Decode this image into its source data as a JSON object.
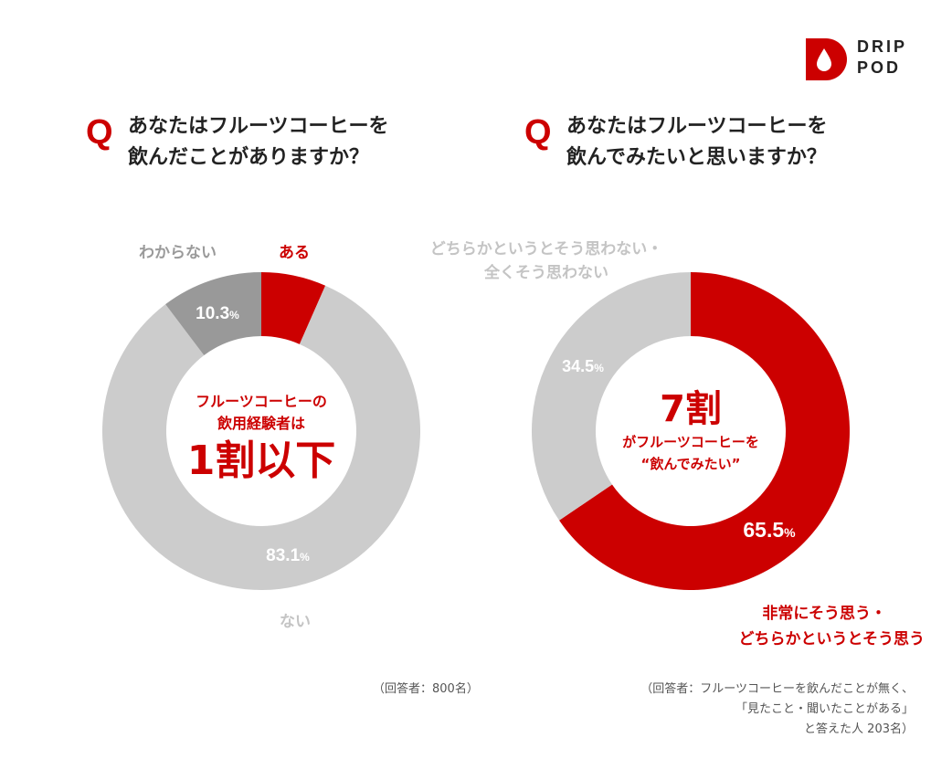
{
  "brand": {
    "line1": "DRIP",
    "line2": "POD"
  },
  "q_mark": "Q",
  "chart_data": [
    {
      "type": "pie",
      "title": "あなたはフルーツコーヒーを\n飲んだことがありますか？",
      "categories": [
        "ある",
        "ない",
        "わからない"
      ],
      "values": [
        6.6,
        83.1,
        10.3
      ],
      "value_labels": [
        "6.6",
        "83.1",
        "10.3"
      ],
      "unit": "%",
      "colors": [
        "#cc0000",
        "#cccccc",
        "#999999"
      ],
      "center": {
        "line1": "フルーツコーヒーの",
        "line2": "飲用経験者は",
        "line3": "1割以下"
      },
      "note": "（回答者：800名）"
    },
    {
      "type": "pie",
      "title": "あなたはフルーツコーヒーを\n飲んでみたいと思いますか？",
      "categories": [
        "非常にそう思う・どちらかというとそう思う",
        "どちらかというとそう思わない・全くそう思わない"
      ],
      "label_lines": [
        [
          "非常にそう思う・",
          "どちらかというとそう思う"
        ],
        [
          "どちらかというとそう思わない・",
          "全くそう思わない"
        ]
      ],
      "values": [
        65.5,
        34.5
      ],
      "value_labels": [
        "65.5",
        "34.5"
      ],
      "unit": "%",
      "colors": [
        "#cc0000",
        "#cccccc"
      ],
      "center": {
        "line1": "7割",
        "line2": "がフルーツコーヒーを",
        "line3": "“飲んでみたい”"
      },
      "note_lines": [
        "（回答者：フルーツコーヒーを飲んだことが無く、",
        "「見たこと・聞いたことがある」",
        "と答えた人 203名）"
      ]
    }
  ]
}
